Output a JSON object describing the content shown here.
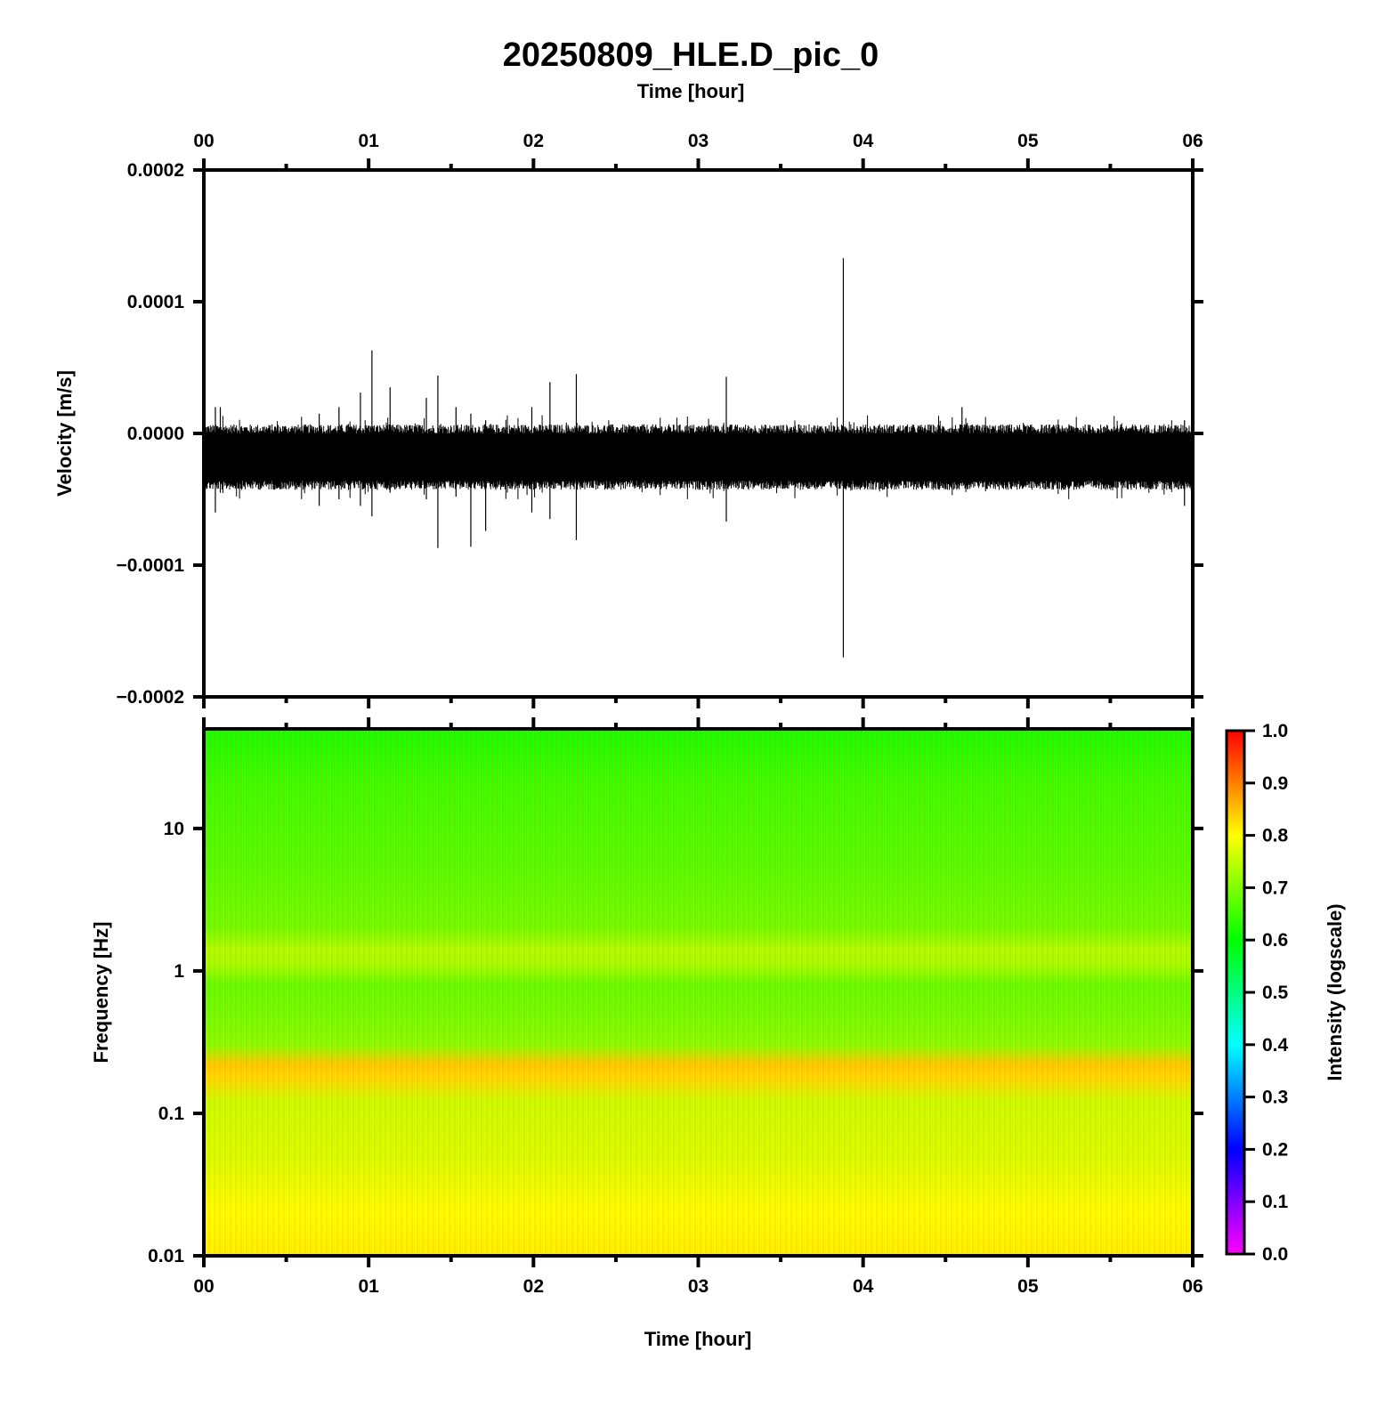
{
  "chart_data": [
    {
      "type": "line",
      "title": "20250809_HLE.D_pic_0",
      "top_xlabel": "Time [hour]",
      "xlabel": "",
      "ylabel": "Velocity [m/s]",
      "x_ticks": [
        "00",
        "01",
        "02",
        "03",
        "04",
        "05",
        "06"
      ],
      "xlim": [
        0,
        6
      ],
      "y_ticks": [
        "0.0002",
        "0.0001",
        "0.0000",
        "−0.0001",
        "−0.0002"
      ],
      "ylim": [
        -0.0002,
        0.0002
      ],
      "grid": false,
      "series": [
        {
          "noise_band": {
            "upper": 2e-06,
            "lower": -3.8e-05
          },
          "spikes": [
            {
              "x": 0.07,
              "max": 2e-05,
              "min": -6e-05
            },
            {
              "x": 0.1,
              "max": 2e-05,
              "min": -4.5e-05
            },
            {
              "x": 0.7,
              "max": 1.5e-05,
              "min": -5.5e-05
            },
            {
              "x": 0.82,
              "max": 2e-05,
              "min": -5e-05
            },
            {
              "x": 0.95,
              "max": 3.1e-05,
              "min": -5.5e-05
            },
            {
              "x": 1.02,
              "max": 6.3e-05,
              "min": -6.3e-05
            },
            {
              "x": 1.13,
              "max": 3.5e-05,
              "min": -4.5e-05
            },
            {
              "x": 1.35,
              "max": 2.7e-05,
              "min": -5e-05
            },
            {
              "x": 1.42,
              "max": 4.4e-05,
              "min": -8.7e-05
            },
            {
              "x": 1.53,
              "max": 2e-05,
              "min": -4.8e-05
            },
            {
              "x": 1.62,
              "max": 1.5e-05,
              "min": -8.6e-05
            },
            {
              "x": 1.71,
              "max": 1e-05,
              "min": -7.4e-05
            },
            {
              "x": 1.99,
              "max": 2e-05,
              "min": -6e-05
            },
            {
              "x": 2.1,
              "max": 3.9e-05,
              "min": -6.5e-05
            },
            {
              "x": 2.26,
              "max": 4.5e-05,
              "min": -8.1e-05
            },
            {
              "x": 3.17,
              "max": 4.3e-05,
              "min": -6.7e-05
            },
            {
              "x": 3.88,
              "max": 0.000133,
              "min": -0.00017
            },
            {
              "x": 4.6,
              "max": 2e-05,
              "min": -4e-05
            },
            {
              "x": 5.95,
              "max": 1e-05,
              "min": -5.5e-05
            }
          ]
        }
      ]
    },
    {
      "type": "heatmap",
      "xlabel": "Time [hour]",
      "ylabel": "Frequency [Hz]",
      "x_ticks": [
        "00",
        "01",
        "02",
        "03",
        "04",
        "05",
        "06"
      ],
      "xlim": [
        0,
        6
      ],
      "y_scale": "log",
      "ylim": [
        0.01,
        50
      ],
      "y_ticks": [
        "10",
        "1",
        "0.1",
        "0.01"
      ],
      "y_tick_values": [
        10,
        1,
        0.1,
        0.01
      ],
      "intensity_profile": [
        {
          "freq": 50,
          "intensity": 0.62
        },
        {
          "freq": 20,
          "intensity": 0.65
        },
        {
          "freq": 5,
          "intensity": 0.67
        },
        {
          "freq": 2,
          "intensity": 0.69
        },
        {
          "freq": 1.4,
          "intensity": 0.74
        },
        {
          "freq": 1.1,
          "intensity": 0.73
        },
        {
          "freq": 0.8,
          "intensity": 0.68
        },
        {
          "freq": 0.5,
          "intensity": 0.69
        },
        {
          "freq": 0.3,
          "intensity": 0.71
        },
        {
          "freq": 0.22,
          "intensity": 0.84
        },
        {
          "freq": 0.18,
          "intensity": 0.83
        },
        {
          "freq": 0.12,
          "intensity": 0.76
        },
        {
          "freq": 0.05,
          "intensity": 0.77
        },
        {
          "freq": 0.02,
          "intensity": 0.8
        },
        {
          "freq": 0.01,
          "intensity": 0.81
        }
      ],
      "colorbar": {
        "label": "Intensity (logscale)",
        "range": [
          0,
          1
        ],
        "ticks": [
          "1.0",
          "0.9",
          "0.8",
          "0.7",
          "0.6",
          "0.5",
          "0.4",
          "0.3",
          "0.2",
          "0.1",
          "0.0"
        ],
        "colormap": [
          "#ff00ff",
          "#0000ff",
          "#00ffff",
          "#00ff00",
          "#ffff00",
          "#ff0000"
        ]
      }
    }
  ]
}
